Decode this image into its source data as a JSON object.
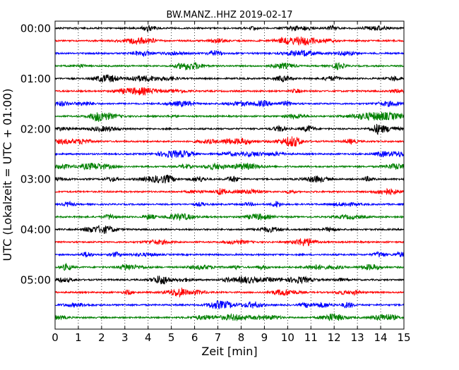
{
  "chart_data": {
    "type": "line",
    "title": "BW.MANZ..HHZ 2019-02-17",
    "xlabel": "Zeit  [min]",
    "ylabel": "UTC (Lokalzeit = UTC + 01:00)",
    "xlim": [
      0,
      15
    ],
    "x_ticks": [
      "0",
      "1",
      "2",
      "3",
      "4",
      "5",
      "6",
      "7",
      "8",
      "9",
      "10",
      "11",
      "12",
      "13",
      "14",
      "15"
    ],
    "y_tick_labels": [
      "00:00",
      "01:00",
      "02:00",
      "03:00",
      "04:00",
      "05:00"
    ],
    "trace_count": 24,
    "trace_interval_min": 15,
    "grid": "vertical dotted lines at each minute",
    "trace_colors": [
      "#000000",
      "#ff0000",
      "#0000ff",
      "#008000"
    ]
  }
}
